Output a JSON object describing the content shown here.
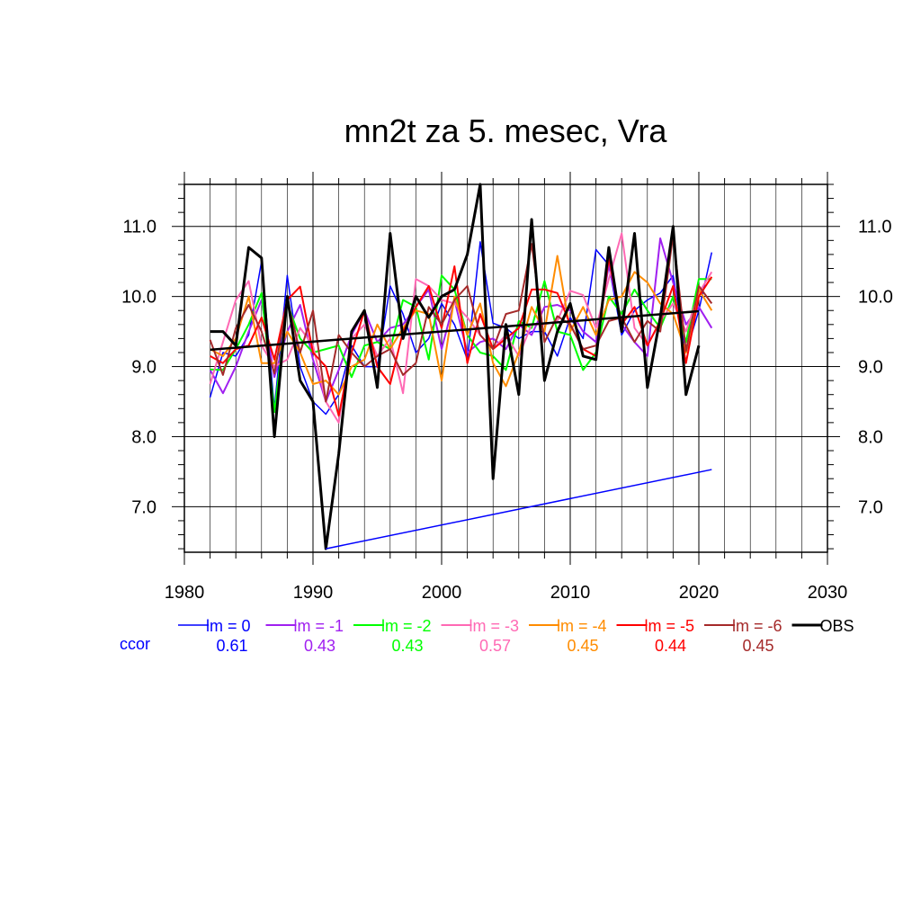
{
  "chart_data": {
    "type": "line",
    "title": "mn2t za 5. mesec, Vra",
    "xlim": [
      1980,
      2030
    ],
    "ylim": [
      6.35,
      11.6
    ],
    "x_ticks": [
      1980,
      1990,
      2000,
      2010,
      2020,
      2030
    ],
    "x_tick_labels": [
      "1980",
      "1990",
      "2000",
      "2010",
      "2020",
      "2030"
    ],
    "y_ticks": [
      7,
      8,
      9,
      10,
      11
    ],
    "y_tick_labels": [
      "7.0",
      "8.0",
      "9.0",
      "10.0",
      "11.0"
    ],
    "grid": true,
    "legend_position": "bottom",
    "ccor_label": "ccor",
    "x": [
      1982,
      1983,
      1984,
      1985,
      1986,
      1987,
      1988,
      1989,
      1990,
      1991,
      1992,
      1993,
      1994,
      1995,
      1996,
      1997,
      1998,
      1999,
      2000,
      2001,
      2002,
      2003,
      2004,
      2005,
      2006,
      2007,
      2008,
      2009,
      2010,
      2011,
      2012,
      2013,
      2014,
      2015,
      2016,
      2017,
      2018,
      2019,
      2020,
      2021
    ],
    "series": [
      {
        "name": "lm = 0",
        "color": "#0000ff",
        "ccor": "0.61",
        "width": 1.5,
        "values": [
          8.56,
          9.2,
          9.15,
          9.45,
          10.5,
          8.4,
          10.3,
          9.0,
          8.5,
          8.32,
          8.6,
          9.3,
          9.0,
          9.0,
          10.15,
          9.75,
          9.2,
          9.4,
          9.9,
          9.6,
          9.1,
          10.78,
          9.62,
          9.55,
          9.4,
          9.5,
          9.5,
          9.15,
          9.7,
          9.4,
          10.67,
          10.45,
          9.45,
          9.8,
          9.95,
          10.05,
          10.3,
          9.2,
          9.8,
          10.63
        ]
      },
      {
        "name": "lm = -1",
        "color": "#a020f0",
        "ccor": "0.43",
        "width": 2,
        "values": [
          8.95,
          8.62,
          9.0,
          9.5,
          9.95,
          8.85,
          9.5,
          9.88,
          9.1,
          8.5,
          8.95,
          9.45,
          9.8,
          9.35,
          9.55,
          9.6,
          9.85,
          10.1,
          9.25,
          9.95,
          9.2,
          9.35,
          9.4,
          9.25,
          9.6,
          9.45,
          9.85,
          9.88,
          9.8,
          9.5,
          9.35,
          10.45,
          9.6,
          9.35,
          9.15,
          10.83,
          10.2,
          9.6,
          9.85,
          9.55
        ]
      },
      {
        "name": "lm = -2",
        "color": "#00ff00",
        "ccor": "0.43",
        "width": 2,
        "values": [
          8.96,
          8.95,
          9.25,
          9.6,
          10.05,
          8.35,
          9.9,
          9.4,
          9.2,
          9.25,
          9.3,
          8.85,
          9.3,
          9.35,
          9.25,
          9.95,
          9.85,
          9.1,
          10.3,
          10.1,
          9.45,
          9.2,
          9.15,
          8.95,
          9.65,
          9.55,
          10.22,
          9.5,
          9.45,
          8.95,
          9.2,
          10.0,
          9.75,
          10.1,
          9.8,
          9.55,
          10.0,
          9.35,
          10.25,
          10.25
        ]
      },
      {
        "name": "lm = -3",
        "color": "#ff69b4",
        "ccor": "0.57",
        "width": 2,
        "values": [
          8.75,
          9.35,
          9.95,
          10.22,
          9.3,
          9.0,
          9.1,
          9.55,
          9.3,
          8.5,
          8.2,
          9.4,
          9.6,
          9.15,
          9.4,
          8.62,
          10.25,
          10.15,
          9.95,
          9.9,
          9.7,
          9.45,
          9.25,
          9.45,
          9.15,
          9.6,
          9.6,
          9.65,
          10.08,
          10.02,
          9.55,
          10.25,
          10.9,
          9.55,
          9.3,
          9.65,
          9.9,
          9.5,
          10.05,
          10.35
        ]
      },
      {
        "name": "lm = -4",
        "color": "#ff8c00",
        "ccor": "0.45",
        "width": 2,
        "values": [
          9.25,
          9.15,
          9.4,
          10.0,
          9.05,
          9.05,
          9.5,
          9.2,
          8.75,
          8.8,
          8.6,
          9.0,
          9.1,
          9.6,
          9.25,
          9.55,
          9.8,
          9.75,
          8.8,
          10.0,
          9.45,
          9.9,
          9.05,
          8.72,
          9.2,
          9.85,
          9.5,
          10.58,
          9.5,
          9.85,
          9.45,
          9.95,
          10.0,
          10.35,
          10.2,
          9.9,
          9.75,
          9.2,
          10.1,
          9.8
        ]
      },
      {
        "name": "lm = -5",
        "color": "#ff0000",
        "ccor": "0.44",
        "width": 2,
        "values": [
          9.15,
          9.05,
          9.25,
          9.3,
          9.7,
          9.1,
          9.95,
          10.14,
          9.2,
          9.0,
          8.3,
          9.2,
          9.8,
          9.0,
          8.75,
          9.5,
          9.85,
          10.15,
          9.55,
          10.43,
          9.05,
          9.75,
          9.25,
          9.4,
          9.55,
          10.1,
          10.1,
          10.05,
          9.6,
          9.25,
          9.15,
          10.55,
          9.6,
          9.85,
          9.3,
          9.65,
          10.15,
          9.05,
          10.0,
          10.28
        ]
      },
      {
        "name": "lm = -6",
        "color": "#a52a2a",
        "ccor": "0.45",
        "width": 2,
        "values": [
          9.38,
          8.88,
          9.55,
          9.88,
          9.5,
          8.9,
          9.95,
          9.2,
          9.8,
          8.5,
          9.45,
          9.2,
          9.0,
          9.15,
          9.25,
          8.88,
          9.05,
          9.85,
          9.6,
          9.95,
          10.15,
          9.45,
          9.25,
          9.75,
          9.8,
          10.75,
          9.35,
          9.72,
          9.6,
          9.25,
          9.3,
          9.65,
          9.7,
          9.35,
          9.65,
          9.5,
          10.88,
          9.22,
          10.15,
          9.9
        ]
      },
      {
        "name": "OBS",
        "color": "#000000",
        "ccor": "",
        "width": 3,
        "values": [
          9.5,
          9.5,
          9.3,
          10.7,
          10.55,
          8.0,
          10.0,
          8.8,
          8.5,
          6.4,
          7.75,
          9.5,
          9.8,
          8.7,
          10.9,
          9.4,
          10.0,
          9.7,
          10.0,
          10.1,
          10.6,
          11.6,
          7.4,
          9.6,
          8.6,
          11.1,
          8.8,
          9.5,
          9.9,
          9.15,
          9.1,
          10.7,
          9.5,
          10.9,
          8.7,
          9.7,
          11.0,
          8.6,
          9.3,
          null
        ]
      }
    ],
    "trend_lines": [
      {
        "name": "OBS trend",
        "color": "#000000",
        "x": [
          1982,
          2020
        ],
        "values": [
          9.24,
          9.79
        ],
        "width": 2.5
      },
      {
        "name": "lm = 0 trend",
        "color": "#0000ff",
        "x": [
          1991,
          2021
        ],
        "values": [
          6.4,
          7.53
        ],
        "width": 1.5
      }
    ]
  }
}
